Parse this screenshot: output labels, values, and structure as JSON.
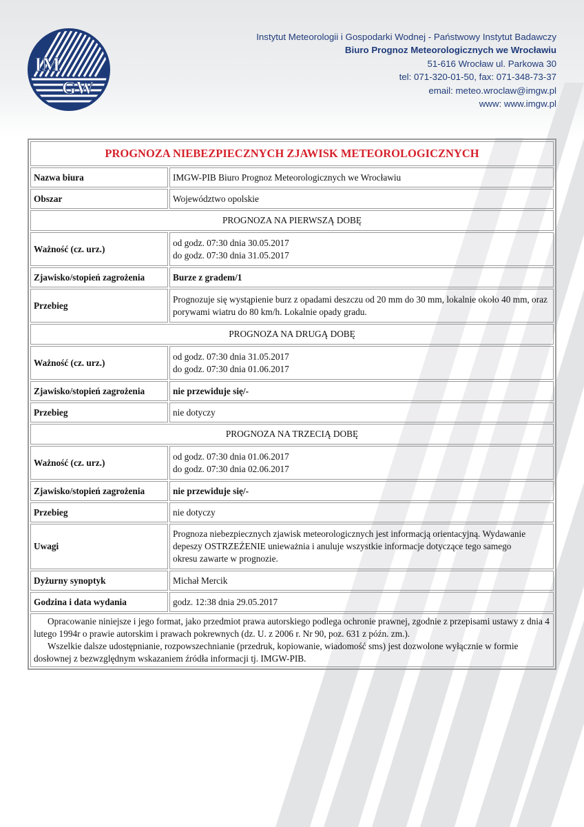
{
  "header": {
    "institute": "Instytut Meteorologii i Gospodarki Wodnej - Państwowy Instytut Badawczy",
    "office": "Biuro Prognoz Meteorologicznych we Wrocławiu",
    "address": "51-616 Wrocław ul. Parkowa 30",
    "phone": "tel: 071-320-01-50, fax: 071-348-73-37",
    "email": "email: meteo.wroclaw@imgw.pl",
    "www": "www: www.imgw.pl",
    "logo_text": "IMGW"
  },
  "colors": {
    "brand": "#1d3a78",
    "title": "#d5212b"
  },
  "document": {
    "title": "PROGNOZA NIEBEZPIECZNYCH ZJAWISK METEOROLOGICZNYCH",
    "office_label": "Nazwa biura",
    "office_value": "IMGW-PIB Biuro Prognoz Meteorologicznych we Wrocławiu",
    "area_label": "Obszar",
    "area_value": "Województwo opolskie",
    "days": [
      {
        "heading": "PROGNOZA NA PIERWSZĄ DOBĘ",
        "validity_label": "Ważność (cz. urz.)",
        "validity_from": "od godz. 07:30 dnia 30.05.2017",
        "validity_to": "do godz. 07:30 dnia 31.05.2017",
        "phenomenon_label": "Zjawisko/stopień zagrożenia",
        "phenomenon_value": "Burze z gradem/1",
        "course_label": "Przebieg",
        "course_value": "Prognozuje się wystąpienie burz z opadami deszczu od 20 mm do 30 mm, lokalnie około 40 mm, oraz porywami wiatru do 80 km/h. Lokalnie opady gradu."
      },
      {
        "heading": "PROGNOZA NA DRUGĄ DOBĘ",
        "validity_label": "Ważność (cz. urz.)",
        "validity_from": "od godz. 07:30 dnia 31.05.2017",
        "validity_to": "do godz. 07:30 dnia 01.06.2017",
        "phenomenon_label": "Zjawisko/stopień zagrożenia",
        "phenomenon_value": "nie przewiduje się/-",
        "course_label": "Przebieg",
        "course_value": "nie dotyczy"
      },
      {
        "heading": "PROGNOZA NA TRZECIĄ DOBĘ",
        "validity_label": "Ważność (cz. urz.)",
        "validity_from": "od godz. 07:30 dnia 01.06.2017",
        "validity_to": "do godz. 07:30 dnia 02.06.2017",
        "phenomenon_label": "Zjawisko/stopień zagrożenia",
        "phenomenon_value": "nie przewiduje się/-",
        "course_label": "Przebieg",
        "course_value": "nie dotyczy"
      }
    ],
    "notes_label": "Uwagi",
    "notes_value": "Prognoza niebezpiecznych zjawisk meteorologicznych jest informacją orientacyjną. Wydawanie depeszy OSTRZEŻENIE unieważnia i anuluje wszystkie informacje dotyczące tego samego okresu zawarte w prognozie.",
    "forecaster_label": "Dyżurny synoptyk",
    "forecaster_value": "Michał Mercik",
    "issued_label": "Godzina i data wydania",
    "issued_value": "godz. 12:38 dnia 29.05.2017",
    "footer_1": "Opracowanie niniejsze i jego format, jako przedmiot prawa autorskiego podlega ochronie prawnej, zgodnie z przepisami ustawy z dnia 4 lutego 1994r o prawie autorskim i prawach pokrewnych (dz. U. z 2006 r. Nr 90, poz. 631 z późn. zm.).",
    "footer_2": "Wszelkie dalsze udostępnianie, rozpowszechnianie (przedruk, kopiowanie, wiadomość sms) jest dozwolone wyłącznie w formie dosłownej z bezwzględnym wskazaniem źródła informacji tj. IMGW-PIB."
  }
}
